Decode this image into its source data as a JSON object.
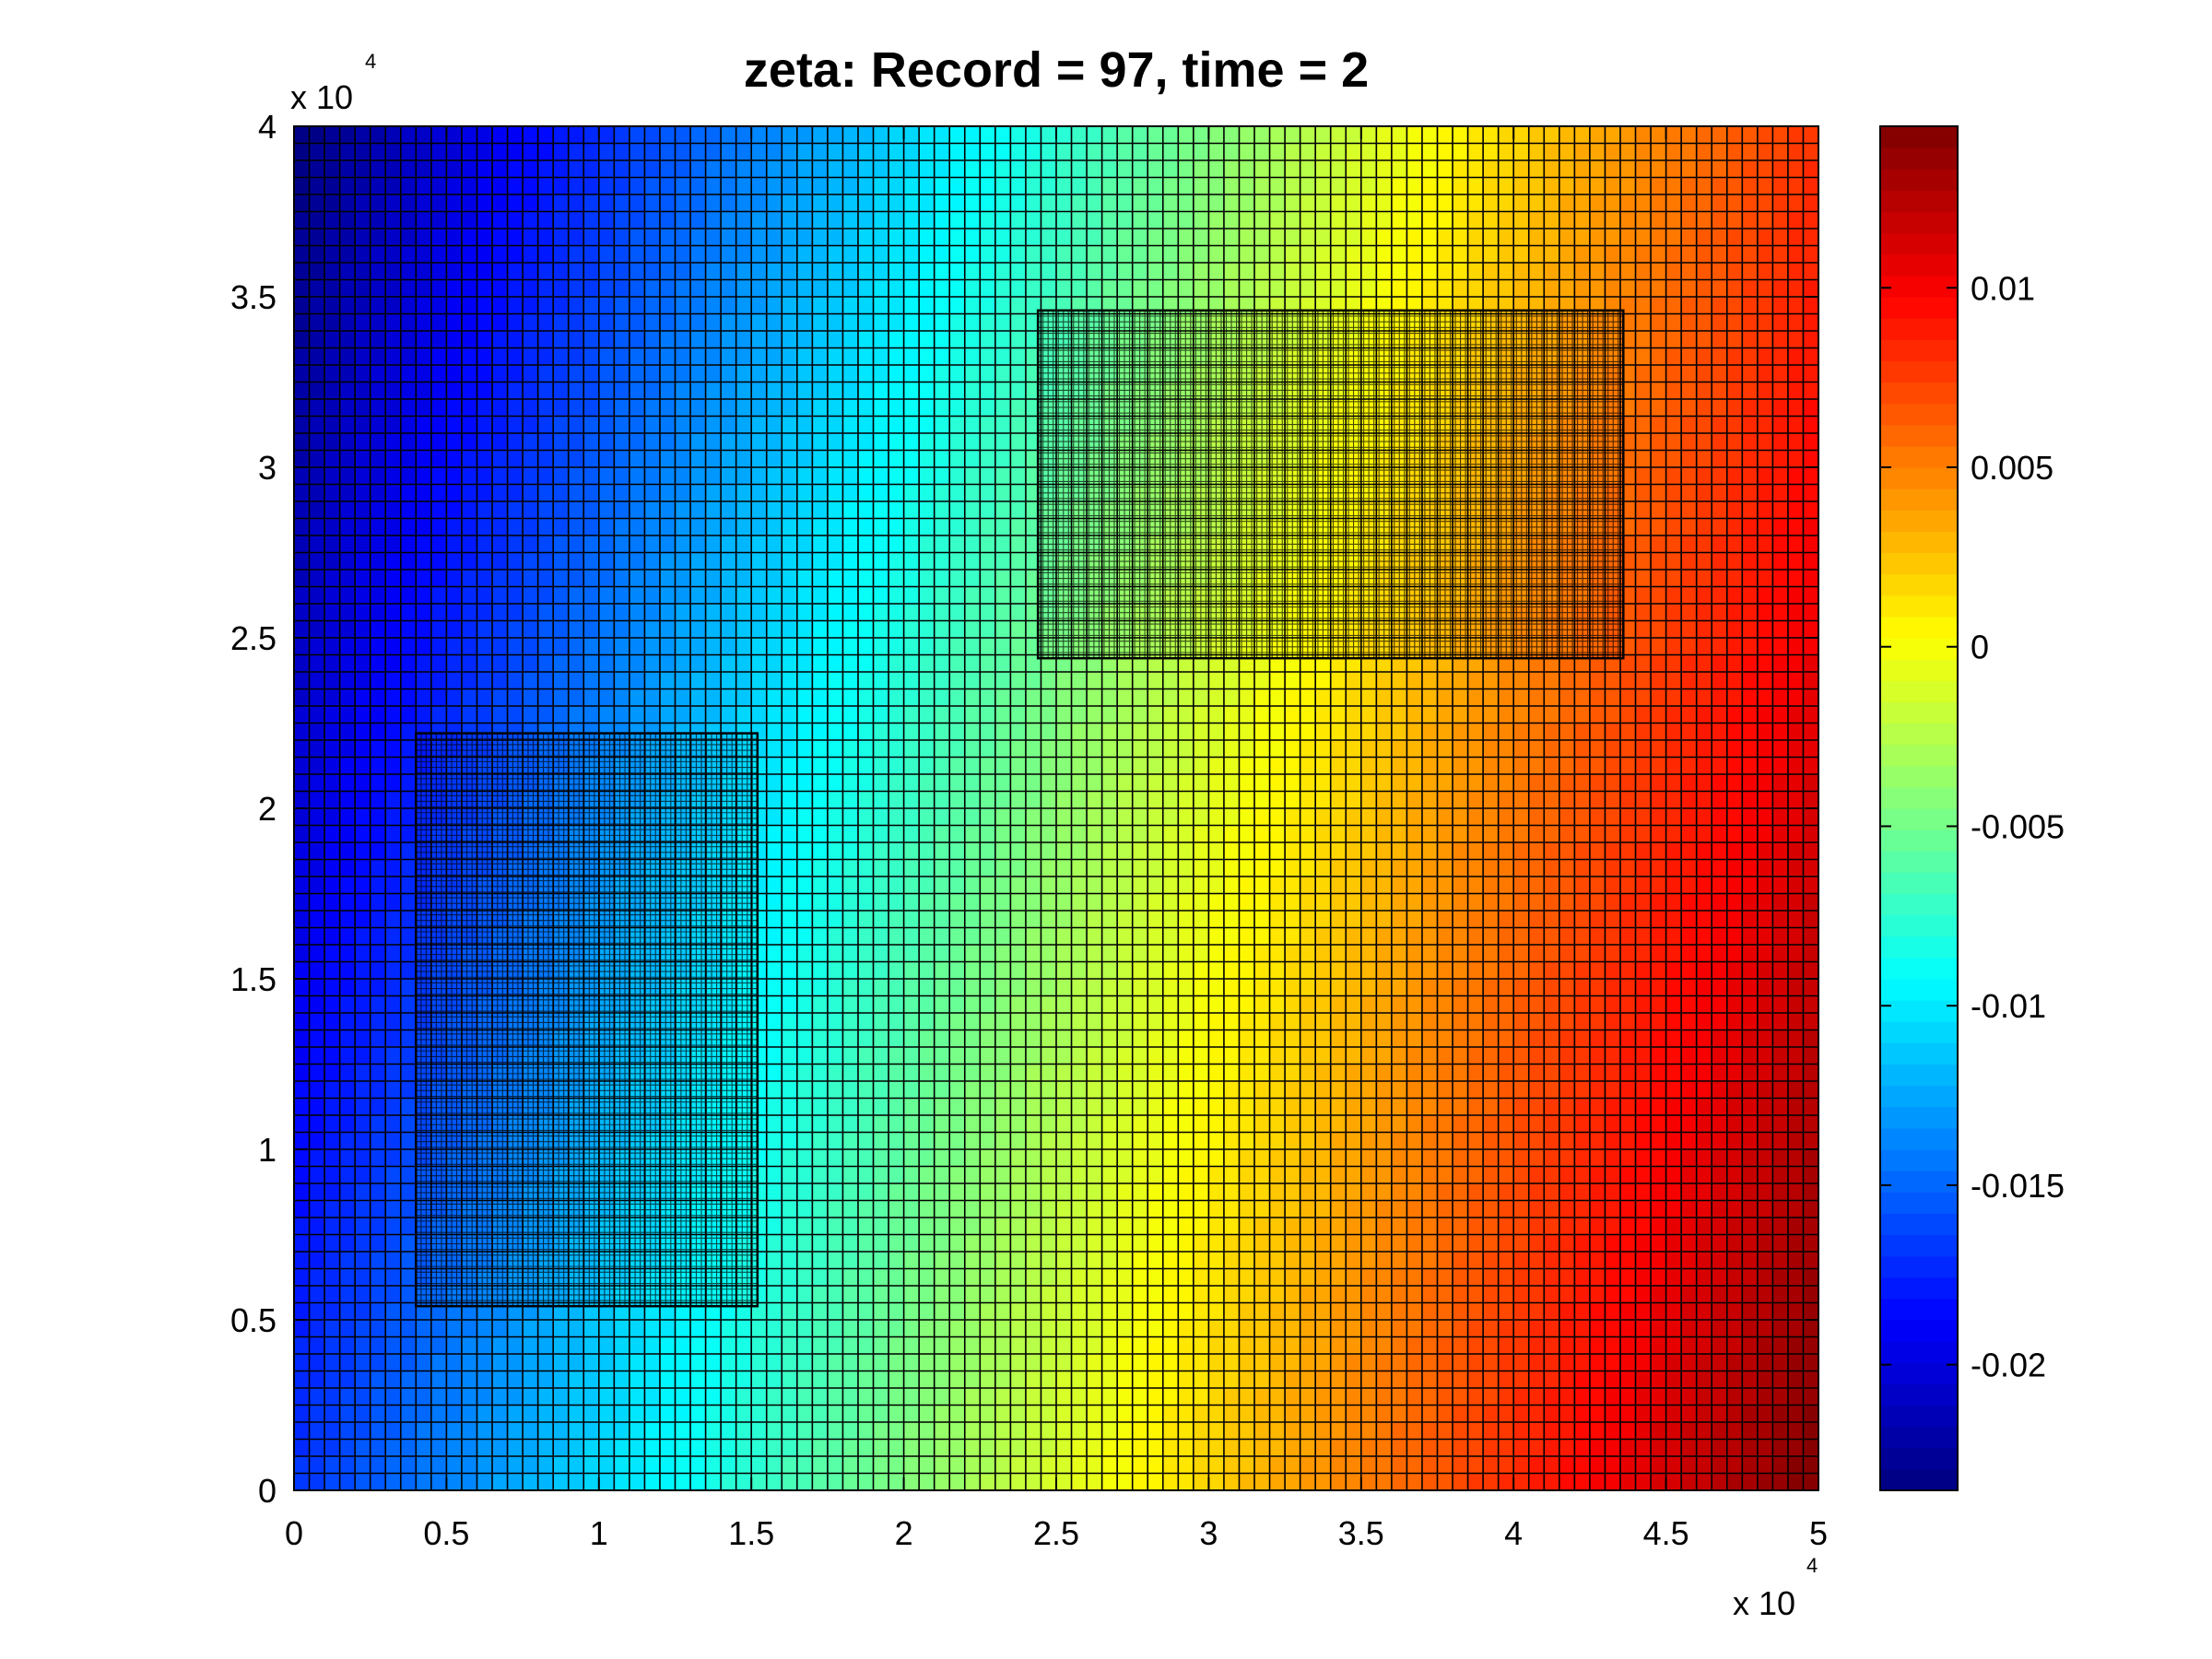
{
  "chart_data": {
    "type": "heatmap",
    "title": "zeta:    Record = 97,    time = 2",
    "variable": "zeta",
    "record": 97,
    "time": 2,
    "x_multiplier": "x 10",
    "x_multiplier_exp": "4",
    "y_multiplier": "x 10",
    "y_multiplier_exp": "4",
    "xlim": [
      0,
      50000
    ],
    "ylim": [
      0,
      40000
    ],
    "xticks": [
      0,
      5000,
      10000,
      15000,
      20000,
      25000,
      30000,
      35000,
      40000,
      45000,
      50000
    ],
    "xtick_labels": [
      "0",
      "0.5",
      "1",
      "1.5",
      "2",
      "2.5",
      "3",
      "3.5",
      "4",
      "4.5",
      "5"
    ],
    "yticks": [
      0,
      5000,
      10000,
      15000,
      20000,
      25000,
      30000,
      35000,
      40000
    ],
    "ytick_labels": [
      "0",
      "0.5",
      "1",
      "1.5",
      "2",
      "2.5",
      "3",
      "3.5",
      "4"
    ],
    "grid_cells": [
      100,
      80
    ],
    "field_range": [
      -0.0235,
      0.0145
    ],
    "field_samples": [
      {
        "x": 0,
        "y": 40000,
        "value": -0.0235
      },
      {
        "x": 0,
        "y": 0,
        "value": -0.017
      },
      {
        "x": 25000,
        "y": 20000,
        "value": -0.004
      },
      {
        "x": 25000,
        "y": 37000,
        "value": -0.011
      },
      {
        "x": 50000,
        "y": 40000,
        "value": 0.008
      },
      {
        "x": 50000,
        "y": 0,
        "value": 0.0145
      }
    ],
    "refined_grids": [
      {
        "x": [
          4000,
          15200
        ],
        "y": [
          5400,
          22200
        ],
        "refinement": 3
      },
      {
        "x": [
          24400,
          43600
        ],
        "y": [
          24400,
          34600
        ],
        "refinement": 3
      }
    ],
    "colorbar": {
      "limits": [
        -0.0235,
        0.0145
      ],
      "ticks": [
        -0.02,
        -0.015,
        -0.01,
        -0.005,
        0,
        0.005,
        0.01
      ],
      "tick_labels": [
        "-0.02",
        "-0.015",
        "-0.01",
        "-0.005",
        "0",
        "0.005",
        "0.01"
      ],
      "colormap": "jet",
      "levels": 64
    }
  }
}
